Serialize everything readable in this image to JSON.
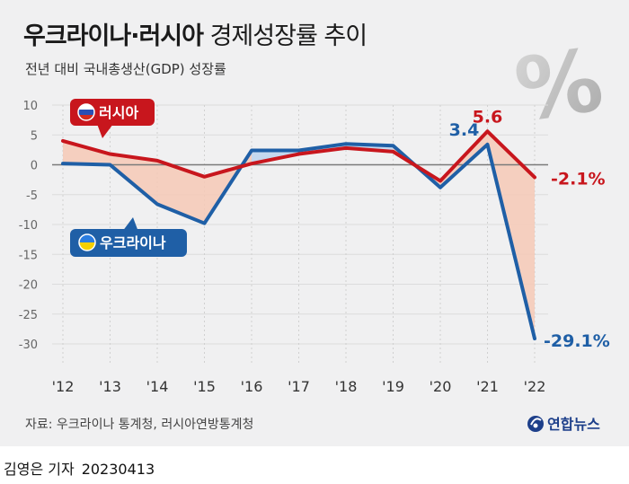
{
  "header": {
    "title_bold": "우크라이나·러시아",
    "title_light": "경제성장률 추이",
    "subtitle": "전년 대비 국내총생산(GDP) 성장률",
    "watermark": "%"
  },
  "footer": {
    "source": "자료: 우크라이나 통계청, 러시아연방통계청",
    "brand": "연합뉴스",
    "author": "김영은 기자",
    "date": "20230413"
  },
  "colors": {
    "russia": "#c8161d",
    "ukraine": "#1f5fa6",
    "gap_fill": "#f6c9b6",
    "gap_fill_alt": "#bcd4ef"
  },
  "chart_data": {
    "type": "line",
    "x": [
      "'12",
      "'13",
      "'14",
      "'15",
      "'16",
      "'17",
      "'18",
      "'19",
      "'20",
      "'21",
      "'22"
    ],
    "ylim": [
      -30,
      10
    ],
    "yticks": [
      10,
      5,
      0,
      -5,
      -10,
      -15,
      -20,
      -25,
      -30
    ],
    "series": [
      {
        "name": "러시아",
        "color": "#c8161d",
        "values": [
          4.0,
          1.8,
          0.7,
          -2.0,
          0.2,
          1.8,
          2.8,
          2.2,
          -2.7,
          5.6,
          -2.1
        ]
      },
      {
        "name": "우크라이나",
        "color": "#1f5fa6",
        "values": [
          0.2,
          0.0,
          -6.6,
          -9.8,
          2.4,
          2.4,
          3.5,
          3.2,
          -3.8,
          3.4,
          -29.1
        ]
      }
    ],
    "annotations": [
      {
        "series": "러시아",
        "index": 9,
        "text": "5.6"
      },
      {
        "series": "러시아",
        "index": 10,
        "text": "-2.1%"
      },
      {
        "series": "우크라이나",
        "index": 9,
        "text": "3.4"
      },
      {
        "series": "우크라이나",
        "index": 10,
        "text": "-29.1%"
      }
    ],
    "legend": {
      "russia_label": "러시아",
      "ukraine_label": "우크라이나"
    }
  }
}
